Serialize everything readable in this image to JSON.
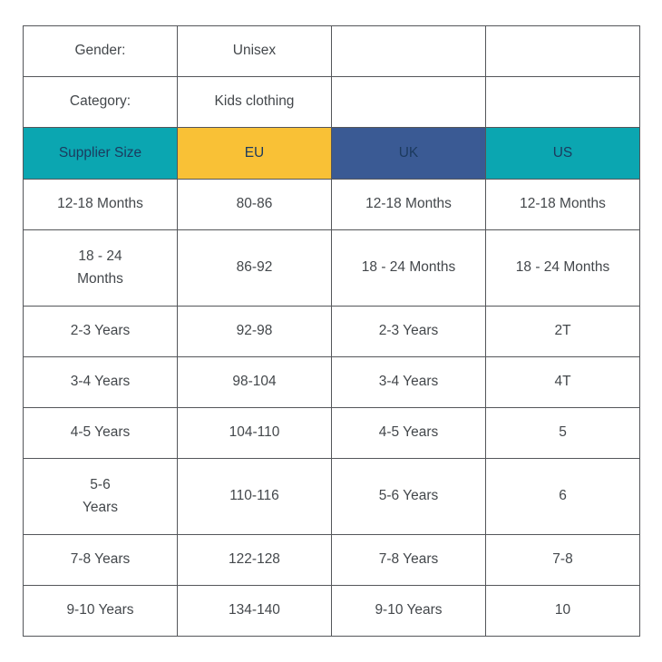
{
  "meta": {
    "gender_label": "Gender:",
    "gender_value": "Unisex",
    "category_label": "Category:",
    "category_value": "Kids clothing"
  },
  "colors": {
    "teal": "#0BA6B1",
    "yellow": "#F9C136",
    "navy_blue": "#3A5A94",
    "header_text": "#1C3A5E",
    "body_text": "#43474B",
    "border": "#54565A",
    "background": "#FFFFFF"
  },
  "table": {
    "headers": [
      {
        "label": "Supplier Size",
        "bg": "#0BA6B1"
      },
      {
        "label": "EU",
        "bg": "#F9C136"
      },
      {
        "label": "UK",
        "bg": "#3A5A94"
      },
      {
        "label": "US",
        "bg": "#0BA6B1"
      }
    ],
    "rows": [
      {
        "supplier": "12-18 Months",
        "eu": "80-86",
        "uk": "12-18 Months",
        "us": "12-18 Months",
        "tall": false
      },
      {
        "supplier": "18 - 24\nMonths",
        "eu": "86-92",
        "uk": "18 - 24 Months",
        "us": "18 - 24 Months",
        "tall": true
      },
      {
        "supplier": "2-3 Years",
        "eu": "92-98",
        "uk": "2-3 Years",
        "us": "2T",
        "tall": false
      },
      {
        "supplier": "3-4 Years",
        "eu": "98-104",
        "uk": "3-4 Years",
        "us": "4T",
        "tall": false
      },
      {
        "supplier": "4-5 Years",
        "eu": "104-110",
        "uk": "4-5 Years",
        "us": "5",
        "tall": false
      },
      {
        "supplier": "5-6\nYears",
        "eu": "110-116",
        "uk": "5-6 Years",
        "us": "6",
        "tall": true
      },
      {
        "supplier": "7-8 Years",
        "eu": "122-128",
        "uk": "7-8 Years",
        "us": "7-8",
        "tall": false
      },
      {
        "supplier": "9-10 Years",
        "eu": "134-140",
        "uk": "9-10 Years",
        "us": "10",
        "tall": false
      }
    ]
  }
}
